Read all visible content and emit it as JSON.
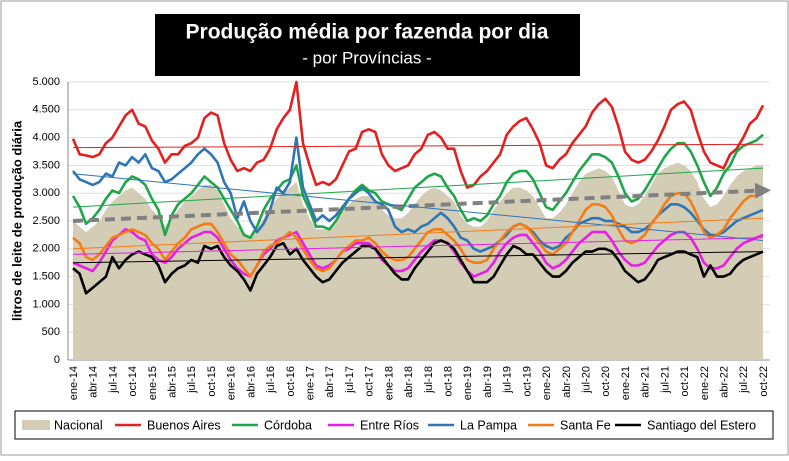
{
  "chart_data": {
    "type": "line",
    "title": "Produção média por fazenda por dia",
    "subtitle": "- por Províncias -",
    "y_label": "litros de leite de produção diária",
    "categories": [
      "ene-14",
      null,
      null,
      "abr-14",
      null,
      null,
      "jul-14",
      null,
      null,
      "oct-14",
      null,
      null,
      "ene-15",
      null,
      null,
      "abr-15",
      null,
      null,
      "jul-15",
      null,
      null,
      "oct-15",
      null,
      null,
      "ene-16",
      null,
      null,
      "abr-16",
      null,
      null,
      "jul-16",
      null,
      null,
      "oct-16",
      null,
      null,
      "ene-17",
      null,
      null,
      "abr-17",
      null,
      null,
      "jul-17",
      null,
      null,
      "oct-17",
      null,
      null,
      "ene-18",
      null,
      null,
      "abr-18",
      null,
      null,
      "jul-18",
      null,
      null,
      "oct-18",
      null,
      null,
      "ene-19",
      null,
      null,
      "abr-19",
      null,
      null,
      "jul-19",
      null,
      null,
      "oct-19",
      null,
      null,
      "ene-20",
      null,
      null,
      "abr-20",
      null,
      null,
      "jul-20",
      null,
      null,
      "oct-20",
      null,
      null,
      "ene-21",
      null,
      null,
      "abr-21",
      null,
      null,
      "jul-21",
      null,
      null,
      "oct-21",
      null,
      null,
      "ene-22",
      null,
      null,
      "abr-22",
      null,
      null,
      "jul-22",
      null,
      null,
      "oct-22"
    ],
    "ylim": [
      0,
      5000
    ],
    "yticks": [
      0,
      500,
      {
        "value": 1000,
        "label": "1.000"
      },
      {
        "value": 1500,
        "label": "1.500"
      },
      {
        "value": 2000,
        "label": "2.000"
      },
      {
        "value": 2500,
        "label": "2.500"
      },
      {
        "value": 3000,
        "label": "3.000"
      },
      {
        "value": 3500,
        "label": "3.500"
      },
      {
        "value": 4000,
        "label": "4.000"
      },
      {
        "value": 4500,
        "label": "4.500"
      },
      {
        "value": 5000,
        "label": "5.000"
      }
    ],
    "grid": true,
    "series": [
      {
        "name": "Nacional",
        "style": "area",
        "color": "#d4cdb6",
        "trend_color": "#808080",
        "trend": [
          2500,
          3050
        ],
        "values": [
          2500,
          2400,
          2300,
          2400,
          2500,
          2700,
          2850,
          2950,
          3050,
          3100,
          3000,
          2900,
          2700,
          2600,
          2400,
          2550,
          2700,
          2850,
          2950,
          3050,
          3150,
          3150,
          3050,
          2800,
          2550,
          2400,
          2300,
          2200,
          2350,
          2550,
          2750,
          2900,
          3000,
          3100,
          3200,
          2800,
          2550,
          2350,
          2350,
          2350,
          2450,
          2650,
          2800,
          2900,
          2950,
          2950,
          2900,
          2700,
          2600,
          2550,
          2550,
          2650,
          2800,
          2950,
          3050,
          3100,
          3050,
          2950,
          2850,
          2600,
          2450,
          2400,
          2400,
          2500,
          2700,
          2850,
          3000,
          3100,
          3100,
          3050,
          2950,
          2750,
          2550,
          2550,
          2650,
          2800,
          3000,
          3200,
          3350,
          3400,
          3450,
          3400,
          3300,
          3050,
          2800,
          2750,
          2800,
          2950,
          3150,
          3350,
          3450,
          3500,
          3550,
          3500,
          3400,
          3200,
          2900,
          2750,
          2800,
          2950,
          3150,
          3300,
          3400,
          3450,
          3500,
          3500
        ]
      },
      {
        "name": "Buenos Aires",
        "style": "line",
        "color": "#e31f1f",
        "trend": [
          3820,
          3880
        ],
        "values": [
          3980,
          3700,
          3680,
          3650,
          3700,
          3900,
          4000,
          4200,
          4400,
          4500,
          4250,
          4200,
          3950,
          3800,
          3550,
          3700,
          3700,
          3850,
          3900,
          4000,
          4350,
          4450,
          4400,
          3900,
          3600,
          3400,
          3450,
          3400,
          3550,
          3600,
          3800,
          4150,
          4350,
          4500,
          5000,
          3900,
          3500,
          3150,
          3200,
          3150,
          3250,
          3500,
          3750,
          3800,
          4100,
          4150,
          4100,
          3700,
          3500,
          3400,
          3450,
          3500,
          3700,
          3800,
          4050,
          4100,
          4000,
          3800,
          3800,
          3400,
          3100,
          3150,
          3300,
          3400,
          3550,
          3700,
          4050,
          4200,
          4300,
          4350,
          4150,
          3900,
          3500,
          3450,
          3600,
          3700,
          3900,
          4050,
          4200,
          4450,
          4600,
          4700,
          4550,
          4200,
          3750,
          3600,
          3550,
          3600,
          3750,
          3950,
          4200,
          4500,
          4600,
          4650,
          4500,
          4100,
          3750,
          3550,
          3500,
          3450,
          3700,
          3800,
          4000,
          4250,
          4350,
          4580
        ]
      },
      {
        "name": "Córdoba",
        "style": "line",
        "color": "#1fa64a",
        "trend": [
          2750,
          3450
        ],
        "values": [
          2950,
          2750,
          2450,
          2550,
          2700,
          2900,
          3050,
          3000,
          3200,
          3300,
          3250,
          3150,
          2900,
          2700,
          2250,
          2600,
          2800,
          2900,
          3000,
          3150,
          3300,
          3200,
          3100,
          2900,
          2700,
          2500,
          2250,
          2200,
          2400,
          2700,
          2900,
          3050,
          3200,
          3250,
          3500,
          2950,
          2700,
          2400,
          2400,
          2350,
          2500,
          2700,
          2900,
          3050,
          3150,
          3050,
          3000,
          2850,
          2800,
          2750,
          2700,
          2900,
          3100,
          3200,
          3300,
          3350,
          3300,
          3100,
          2950,
          2700,
          2500,
          2550,
          2500,
          2600,
          2800,
          2950,
          3200,
          3350,
          3400,
          3400,
          3250,
          3000,
          2750,
          2700,
          2850,
          3000,
          3200,
          3400,
          3550,
          3700,
          3700,
          3650,
          3550,
          3300,
          3000,
          2850,
          2900,
          3050,
          3250,
          3450,
          3650,
          3800,
          3900,
          3900,
          3750,
          3500,
          3200,
          2950,
          3100,
          3350,
          3500,
          3750,
          3850,
          3900,
          3950,
          4050
        ]
      },
      {
        "name": "Entre Ríos",
        "style": "line",
        "color": "#e61ee6",
        "trend": [
          1900,
          2200
        ],
        "values": [
          1750,
          1700,
          1650,
          1600,
          1750,
          1950,
          2150,
          2250,
          2350,
          2300,
          2200,
          2150,
          1900,
          1800,
          1750,
          1850,
          2000,
          2100,
          2200,
          2250,
          2300,
          2300,
          2200,
          2000,
          1800,
          1650,
          1550,
          1500,
          1700,
          1900,
          2000,
          2150,
          2200,
          2250,
          2300,
          2100,
          1900,
          1700,
          1650,
          1700,
          1800,
          1950,
          2000,
          2100,
          2100,
          2100,
          2000,
          1800,
          1700,
          1600,
          1600,
          1650,
          1800,
          1950,
          2050,
          2150,
          2150,
          2100,
          1950,
          1750,
          1600,
          1500,
          1550,
          1600,
          1750,
          1950,
          2100,
          2200,
          2250,
          2250,
          2100,
          1950,
          1750,
          1650,
          1700,
          1800,
          1950,
          2100,
          2200,
          2300,
          2300,
          2300,
          2150,
          1950,
          1800,
          1700,
          1700,
          1750,
          1900,
          2050,
          2150,
          2250,
          2300,
          2300,
          2200,
          2000,
          1750,
          1650,
          1650,
          1700,
          1850,
          2000,
          2100,
          2150,
          2200,
          2250
        ]
      },
      {
        "name": "La Pampa",
        "style": "line",
        "color": "#2e75b6",
        "trend": [
          3350,
          2150
        ],
        "values": [
          3400,
          3250,
          3200,
          3150,
          3200,
          3350,
          3300,
          3550,
          3500,
          3650,
          3550,
          3700,
          3450,
          3400,
          3200,
          3250,
          3350,
          3450,
          3550,
          3700,
          3800,
          3700,
          3550,
          3200,
          3000,
          2550,
          2850,
          2500,
          2300,
          2450,
          2700,
          3100,
          3000,
          3200,
          4000,
          3100,
          2800,
          2500,
          2600,
          2500,
          2600,
          2750,
          2900,
          3000,
          3100,
          3000,
          2850,
          2800,
          2700,
          2400,
          2300,
          2350,
          2300,
          2400,
          2450,
          2550,
          2650,
          2550,
          2400,
          2200,
          2150,
          2000,
          1950,
          2000,
          2050,
          2150,
          2250,
          2400,
          2450,
          2400,
          2300,
          2150,
          2050,
          2000,
          2050,
          2200,
          2300,
          2450,
          2500,
          2550,
          2550,
          2500,
          2500,
          2450,
          2400,
          2300,
          2300,
          2350,
          2450,
          2600,
          2700,
          2800,
          2800,
          2750,
          2650,
          2500,
          2350,
          2250,
          2250,
          2300,
          2400,
          2500,
          2550,
          2600,
          2650,
          2700
        ]
      },
      {
        "name": "Santa Fe",
        "style": "line",
        "color": "#f57c14",
        "trend": [
          2000,
          2550
        ],
        "values": [
          2200,
          2100,
          1850,
          1800,
          1900,
          2050,
          2200,
          2250,
          2300,
          2350,
          2300,
          2250,
          2100,
          2000,
          1800,
          1950,
          2100,
          2200,
          2350,
          2400,
          2450,
          2450,
          2300,
          2100,
          1900,
          1800,
          1650,
          1500,
          1700,
          1950,
          2050,
          2100,
          2200,
          2300,
          2200,
          2000,
          1800,
          1650,
          1600,
          1650,
          1800,
          1950,
          2050,
          2150,
          2150,
          2200,
          2100,
          1950,
          1850,
          1800,
          1800,
          1850,
          2000,
          2150,
          2300,
          2350,
          2350,
          2250,
          2150,
          2000,
          1800,
          1750,
          1750,
          1800,
          2000,
          2150,
          2300,
          2400,
          2450,
          2400,
          2250,
          2100,
          1950,
          1900,
          2000,
          2100,
          2300,
          2500,
          2700,
          2800,
          2800,
          2750,
          2600,
          2350,
          2150,
          2100,
          2150,
          2250,
          2450,
          2600,
          2800,
          2950,
          3000,
          3000,
          2850,
          2600,
          2300,
          2200,
          2250,
          2350,
          2550,
          2700,
          2850,
          2950,
          2950,
          3000
        ]
      },
      {
        "name": "Santiago del Estero",
        "style": "line",
        "color": "#000000",
        "trend": [
          1750,
          1950
        ],
        "values": [
          1650,
          1550,
          1200,
          1300,
          1400,
          1500,
          1850,
          1650,
          1800,
          1900,
          1950,
          1900,
          1850,
          1700,
          1400,
          1550,
          1650,
          1700,
          1800,
          1750,
          2050,
          2000,
          2050,
          1850,
          1700,
          1600,
          1450,
          1250,
          1550,
          1700,
          1850,
          2050,
          2100,
          1900,
          2000,
          1800,
          1650,
          1500,
          1400,
          1450,
          1600,
          1750,
          1850,
          1950,
          2050,
          2050,
          2000,
          1850,
          1700,
          1550,
          1450,
          1450,
          1650,
          1800,
          1950,
          2100,
          2150,
          2100,
          2000,
          1800,
          1600,
          1400,
          1400,
          1400,
          1500,
          1700,
          1900,
          2050,
          2000,
          1900,
          1900,
          1750,
          1600,
          1500,
          1500,
          1600,
          1750,
          1850,
          1950,
          1950,
          2000,
          2000,
          1950,
          1800,
          1600,
          1500,
          1400,
          1450,
          1600,
          1800,
          1850,
          1900,
          1950,
          1950,
          1900,
          1850,
          1500,
          1700,
          1500,
          1500,
          1550,
          1700,
          1800,
          1850,
          1900,
          1950
        ]
      }
    ]
  }
}
